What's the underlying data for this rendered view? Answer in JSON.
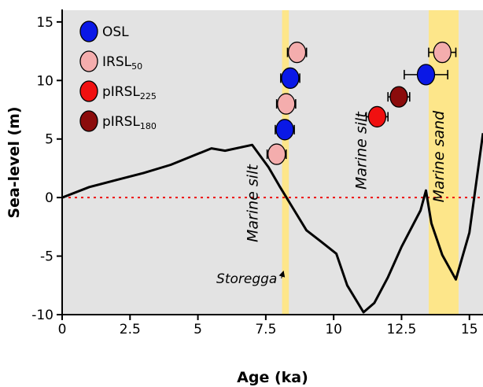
{
  "chart_data": {
    "type": "scatter",
    "xlabel": "Age (ka)",
    "ylabel": "Sea-level (m)",
    "xlim": [
      0,
      15.5
    ],
    "ylim": [
      -10,
      16
    ],
    "x_ticks": [
      0,
      2.5,
      5,
      7.5,
      10,
      12.5,
      15
    ],
    "x_tick_labels": [
      "0",
      "2.5",
      "5",
      "7.5",
      "10",
      "12.5",
      "15"
    ],
    "y_ticks": [
      -10,
      -5,
      0,
      5,
      10,
      15
    ],
    "y_tick_labels": [
      "-10",
      "-5",
      "0",
      "5",
      "10",
      "15"
    ],
    "background_color": "#e3e3e3",
    "zero_line": {
      "y": 0,
      "color": "#ee1111",
      "style": "dotted"
    },
    "highlight_bands": [
      {
        "x0": 8.1,
        "x1": 8.35,
        "color": "#fde68a"
      },
      {
        "x0": 13.5,
        "x1": 14.6,
        "color": "#fde68a"
      }
    ],
    "curve": {
      "color": "#000000",
      "x": [
        0,
        1,
        2,
        3,
        4,
        5.5,
        6,
        7,
        7.6,
        8,
        8.5,
        9,
        9.5,
        10.1,
        10.5,
        11.1,
        11.5,
        12,
        12.5,
        13.2,
        13.4,
        13.6,
        14,
        14.5,
        15,
        15.5
      ],
      "y": [
        0,
        0.9,
        1.5,
        2.1,
        2.8,
        4.2,
        4.0,
        4.5,
        2.6,
        1.0,
        -0.9,
        -2.8,
        -3.7,
        -4.8,
        -7.5,
        -9.8,
        -9.0,
        -6.8,
        -4.2,
        -1.1,
        0.6,
        -2.2,
        -4.9,
        -7.0,
        -3.0,
        5.5
      ]
    },
    "series": [
      {
        "name": "OSL",
        "color": "#0a18e6",
        "points": [
          {
            "x": 8.4,
            "y": 10.2,
            "err": 0.35
          },
          {
            "x": 8.2,
            "y": 5.8,
            "err": 0.35
          },
          {
            "x": 13.4,
            "y": 10.5,
            "err": 0.8
          }
        ]
      },
      {
        "name": "IRSL",
        "name_sub": "50",
        "color": "#f4adad",
        "points": [
          {
            "x": 8.65,
            "y": 12.4,
            "err": 0.35
          },
          {
            "x": 8.25,
            "y": 8.0,
            "err": 0.35
          },
          {
            "x": 7.9,
            "y": 3.7,
            "err": 0.35
          },
          {
            "x": 14.0,
            "y": 12.4,
            "err": 0.5
          }
        ]
      },
      {
        "name": "pIRSL",
        "name_sub": "225",
        "color": "#f01010",
        "points": [
          {
            "x": 11.6,
            "y": 6.9,
            "err": 0.4
          }
        ]
      },
      {
        "name": "pIRSL",
        "name_sub": "180",
        "color": "#8b0c0c",
        "points": [
          {
            "x": 12.4,
            "y": 8.6,
            "err": 0.4
          }
        ]
      }
    ],
    "annotations": [
      {
        "text": "Marine silt",
        "x": 7.2,
        "y": -0.5,
        "rotation": -90
      },
      {
        "text": "Marine silt",
        "x": 11.2,
        "y": 4.0,
        "rotation": -90
      },
      {
        "text": "Marine sand",
        "x": 14.05,
        "y": 3.5,
        "rotation": -90
      },
      {
        "text": "Storegga",
        "x": 6.8,
        "y": -7.3,
        "arrow_to": [
          8.15,
          -6.3
        ]
      }
    ]
  }
}
